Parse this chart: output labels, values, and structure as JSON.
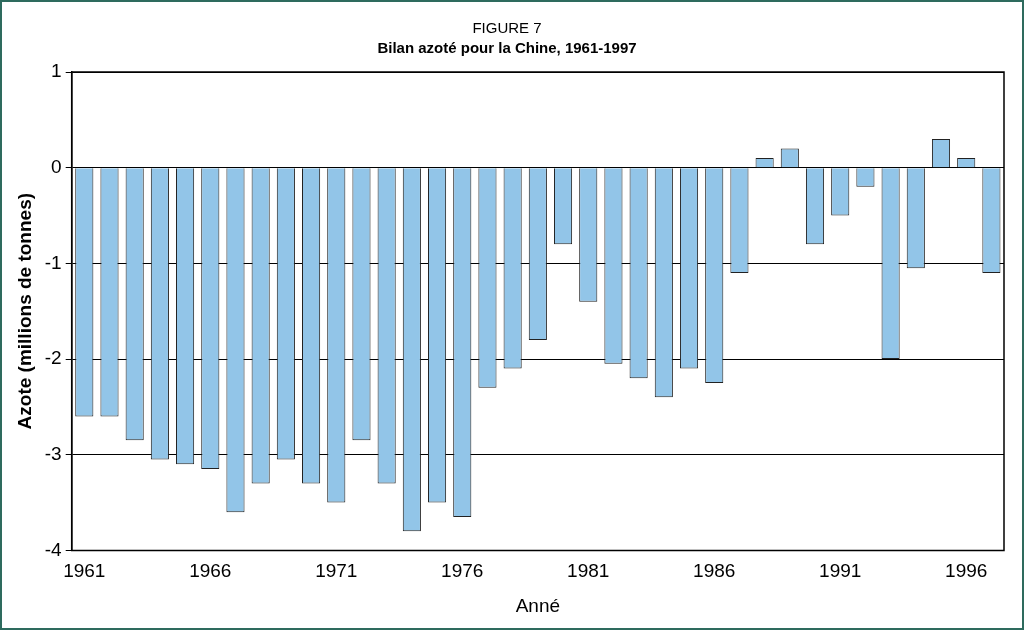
{
  "chart_data": {
    "type": "bar",
    "title": "FIGURE 7",
    "subtitle": "Bilan azoté pour la Chine, 1961-1997",
    "xlabel": "Anné",
    "ylabel": "Azote (millions de tonnes)",
    "categories": [
      "1961",
      null,
      null,
      null,
      null,
      "1966",
      null,
      null,
      null,
      null,
      "1971",
      null,
      null,
      null,
      null,
      "1976",
      null,
      null,
      null,
      null,
      "1981",
      null,
      null,
      null,
      null,
      "1986",
      null,
      null,
      null,
      null,
      "1991",
      null,
      null,
      null,
      null,
      "1996",
      null
    ],
    "values": [
      -2.6,
      -2.6,
      -2.85,
      -3.05,
      -3.1,
      -3.15,
      -3.6,
      -3.3,
      -3.05,
      -3.3,
      -3.5,
      -2.85,
      -3.3,
      -3.8,
      -3.5,
      -3.65,
      -2.3,
      -2.1,
      -1.8,
      -0.8,
      -1.4,
      -2.05,
      -2.2,
      -2.4,
      -2.1,
      -2.25,
      -1.1,
      0.1,
      0.2,
      -0.8,
      -0.5,
      -0.2,
      -2.0,
      -1.05,
      0.3,
      0.1,
      -1.1
    ],
    "color": "#92c5e8",
    "ylim": [
      -4,
      1
    ],
    "yticks": [
      -4,
      -3,
      -2,
      -1,
      0,
      1
    ],
    "grid": "y",
    "legend": false
  }
}
